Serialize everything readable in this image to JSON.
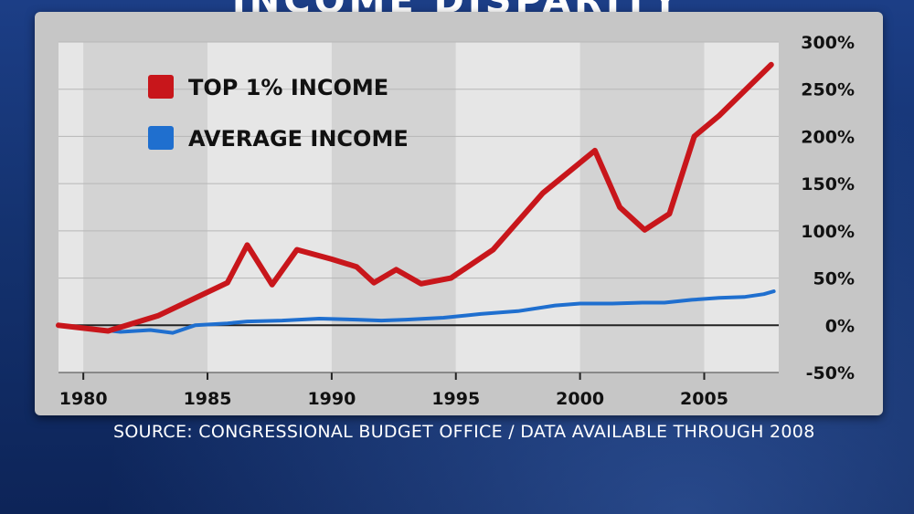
{
  "banner": {
    "title": "INCOME DISPARITY"
  },
  "source": "SOURCE: CONGRESSIONAL BUDGET OFFICE / DATA AVAILABLE THROUGH 2008",
  "colors": {
    "top": "#c8161b",
    "avg": "#1f6fcf",
    "plot_light": "#e6e6e6",
    "plot_dark": "#d3d3d3",
    "panel": "#c6c6c6"
  },
  "chart_data": {
    "type": "line",
    "title": "",
    "xlabel": "",
    "ylabel": "",
    "xlim": [
      1979,
      2008
    ],
    "ylim": [
      -50,
      300
    ],
    "x_ticks": [
      "1980",
      "1985",
      "1990",
      "1995",
      "2000",
      "2005"
    ],
    "y_ticks": [
      "300%",
      "250%",
      "200%",
      "150%",
      "100%",
      "50%",
      "0%",
      "-50%"
    ],
    "legend_position": "top-left",
    "series": [
      {
        "name": "TOP 1% INCOME",
        "color": "#c8161b",
        "points": [
          [
            1979,
            0
          ],
          [
            1981,
            -6
          ],
          [
            1983,
            10
          ],
          [
            1985,
            35
          ],
          [
            1985.8,
            45
          ],
          [
            1986.6,
            85
          ],
          [
            1987.6,
            43
          ],
          [
            1988.6,
            80
          ],
          [
            1990,
            70
          ],
          [
            1991,
            62
          ],
          [
            1991.7,
            45
          ],
          [
            1992.6,
            59
          ],
          [
            1993.6,
            44
          ],
          [
            1994.8,
            50
          ],
          [
            1996.5,
            80
          ],
          [
            1998.5,
            140
          ],
          [
            2000.6,
            185
          ],
          [
            2001.6,
            125
          ],
          [
            2002.6,
            101
          ],
          [
            2003.6,
            118
          ],
          [
            2004.6,
            200
          ],
          [
            2005.6,
            222
          ],
          [
            2007.7,
            276
          ]
        ]
      },
      {
        "name": "AVERAGE INCOME",
        "color": "#1f6fcf",
        "points": [
          [
            1979,
            0
          ],
          [
            1980.5,
            -4
          ],
          [
            1981.5,
            -7
          ],
          [
            1982.7,
            -5
          ],
          [
            1983.6,
            -8
          ],
          [
            1984.5,
            0
          ],
          [
            1985.8,
            2
          ],
          [
            1986.6,
            4
          ],
          [
            1988,
            5
          ],
          [
            1989.5,
            7
          ],
          [
            1991,
            6
          ],
          [
            1992,
            5
          ],
          [
            1993,
            6
          ],
          [
            1994.5,
            8
          ],
          [
            1996,
            12
          ],
          [
            1997.5,
            15
          ],
          [
            1999,
            21
          ],
          [
            2000,
            23
          ],
          [
            2001.3,
            23
          ],
          [
            2002.5,
            24
          ],
          [
            2003.4,
            24
          ],
          [
            2004.5,
            27
          ],
          [
            2005.6,
            29
          ],
          [
            2006.6,
            30
          ],
          [
            2007.4,
            33
          ],
          [
            2007.8,
            36
          ]
        ]
      }
    ]
  }
}
